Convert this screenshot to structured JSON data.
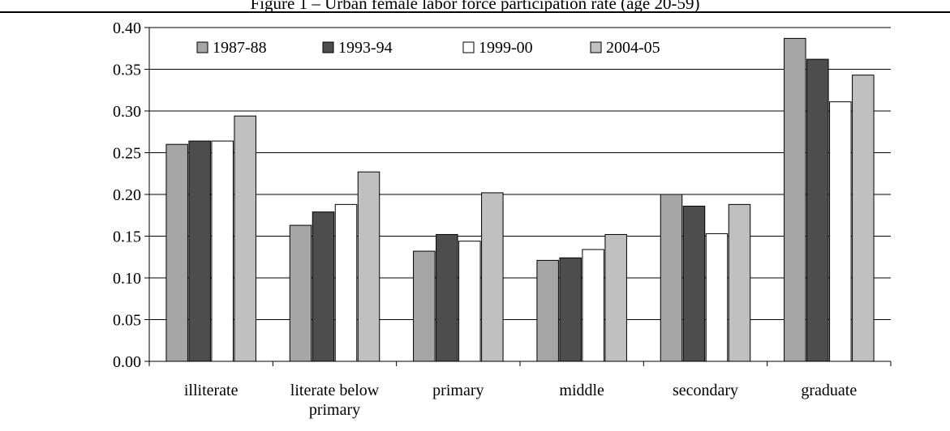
{
  "chart_data": {
    "type": "bar",
    "title": "Figure 1 – Urban female labor force participation rate (age 20-59)",
    "xlabel": "",
    "ylabel": "",
    "ylim": [
      0,
      0.4
    ],
    "yticks": [
      "0.00",
      "0.05",
      "0.10",
      "0.15",
      "0.20",
      "0.25",
      "0.30",
      "0.35",
      "0.40"
    ],
    "categories": [
      [
        "illiterate"
      ],
      [
        "literate below",
        "primary"
      ],
      [
        "primary"
      ],
      [
        "middle"
      ],
      [
        "secondary"
      ],
      [
        "graduate"
      ]
    ],
    "series": [
      {
        "name": "1987-88",
        "color": "#a6a6a6",
        "values": [
          0.26,
          0.163,
          0.132,
          0.121,
          0.2,
          0.387
        ]
      },
      {
        "name": "1993-94",
        "color": "#4d4d4d",
        "values": [
          0.264,
          0.179,
          0.152,
          0.124,
          0.186,
          0.362
        ]
      },
      {
        "name": "1999-00",
        "color": "#ffffff",
        "values": [
          0.264,
          0.188,
          0.144,
          0.134,
          0.153,
          0.311
        ]
      },
      {
        "name": "2004-05",
        "color": "#c0c0c0",
        "values": [
          0.294,
          0.227,
          0.202,
          0.152,
          0.188,
          0.343
        ]
      }
    ],
    "grid": true,
    "legend": "top"
  }
}
